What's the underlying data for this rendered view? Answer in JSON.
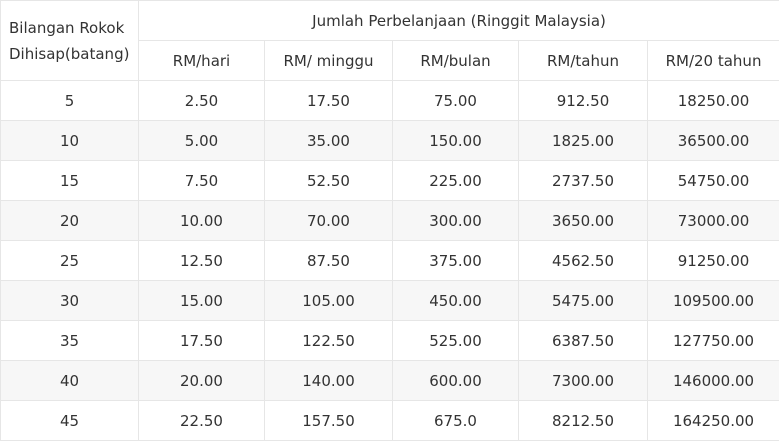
{
  "table": {
    "corner_line1": "Bilangan Rokok",
    "corner_line2": "Dihisap(batang)",
    "group_header": "Jumlah Perbelanjaan (Ringgit Malaysia)",
    "sub_headers": [
      "RM/hari",
      "RM/ minggu",
      "RM/bulan",
      "RM/tahun",
      "RM/20 tahun"
    ],
    "rows": [
      [
        "5",
        "2.50",
        "17.50",
        "75.00",
        "912.50",
        "18250.00"
      ],
      [
        "10",
        "5.00",
        "35.00",
        "150.00",
        "1825.00",
        "36500.00"
      ],
      [
        "15",
        "7.50",
        "52.50",
        "225.00",
        "2737.50",
        "54750.00"
      ],
      [
        "20",
        "10.00",
        "70.00",
        "300.00",
        "3650.00",
        "73000.00"
      ],
      [
        "25",
        "12.50",
        "87.50",
        "375.00",
        "4562.50",
        "91250.00"
      ],
      [
        "30",
        "15.00",
        "105.00",
        "450.00",
        "5475.00",
        "109500.00"
      ],
      [
        "35",
        "17.50",
        "122.50",
        "525.00",
        "6387.50",
        "127750.00"
      ],
      [
        "40",
        "20.00",
        "140.00",
        "600.00",
        "7300.00",
        "146000.00"
      ],
      [
        "45",
        "22.50",
        "157.50",
        "675.0",
        "8212.50",
        "164250.00"
      ]
    ]
  }
}
